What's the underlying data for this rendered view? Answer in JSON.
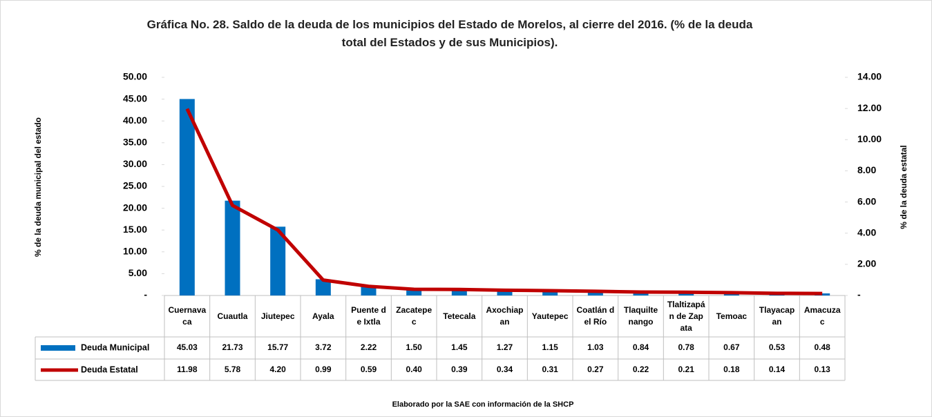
{
  "chart_data": {
    "type": "bar",
    "title": "Gráfica No. 28. Saldo de la deuda de los municipios del Estado de Morelos, al cierre del 2016. (% de la deuda total del Estados y de sus Municipios).",
    "y_label": "% de la deuda municipal del estado",
    "y2_label": "% de la deuda estatal",
    "note": "Elaborado por la SAE con información de  la SHCP",
    "categories": [
      "Cuernavaca",
      "Cuautla",
      "Jiutepec",
      "Ayala",
      "Puente de Ixtla",
      "Zacatepec",
      "Tetecala",
      "Axochiapan",
      "Yautepec",
      "Coatlán del Río",
      "Tlaquiltenango",
      "Tlaltizapán de Zapata",
      "Temoac",
      "Tlayacapan",
      "Amacuzac"
    ],
    "series": [
      {
        "name": "Deuda Municipal",
        "type": "bar",
        "color": "#0070c0",
        "values": [
          45.03,
          21.73,
          15.77,
          3.72,
          2.22,
          1.5,
          1.45,
          1.27,
          1.15,
          1.03,
          0.84,
          0.78,
          0.67,
          0.53,
          0.48
        ],
        "value_labels": [
          "45.03",
          "21.73",
          "15.77",
          "3.72",
          "2.22",
          "1.50",
          "1.45",
          "1.27",
          "1.15",
          "1.03",
          "0.84",
          "0.78",
          "0.67",
          "0.53",
          "0.48"
        ]
      },
      {
        "name": "Deuda Estatal",
        "type": "line",
        "axis": "y2",
        "color": "#c00000",
        "values": [
          11.98,
          5.78,
          4.2,
          0.99,
          0.59,
          0.4,
          0.39,
          0.34,
          0.31,
          0.27,
          0.22,
          0.21,
          0.18,
          0.14,
          0.13
        ],
        "value_labels": [
          "11.98",
          "5.78",
          "4.20",
          "0.99",
          "0.59",
          "0.40",
          "0.39",
          "0.34",
          "0.31",
          "0.27",
          "0.22",
          "0.21",
          "0.18",
          "0.14",
          "0.13"
        ]
      }
    ],
    "ylim": [
      0,
      50
    ],
    "yticks": [
      {
        "value": 0,
        "label": "-"
      },
      {
        "value": 5,
        "label": "5.00"
      },
      {
        "value": 10,
        "label": "10.00"
      },
      {
        "value": 15,
        "label": "15.00"
      },
      {
        "value": 20,
        "label": "20.00"
      },
      {
        "value": 25,
        "label": "25.00"
      },
      {
        "value": 30,
        "label": "30.00"
      },
      {
        "value": 35,
        "label": "35.00"
      },
      {
        "value": 40,
        "label": "40.00"
      },
      {
        "value": 45,
        "label": "45.00"
      },
      {
        "value": 50,
        "label": "50.00"
      }
    ],
    "y2lim": [
      0,
      14
    ],
    "y2ticks": [
      {
        "value": 0,
        "label": "-"
      },
      {
        "value": 2,
        "label": "2.00"
      },
      {
        "value": 4,
        "label": "4.00"
      },
      {
        "value": 6,
        "label": "6.00"
      },
      {
        "value": 8,
        "label": "8.00"
      },
      {
        "value": 10,
        "label": "10.00"
      },
      {
        "value": 12,
        "label": "12.00"
      },
      {
        "value": 14,
        "label": "14.00"
      }
    ]
  }
}
